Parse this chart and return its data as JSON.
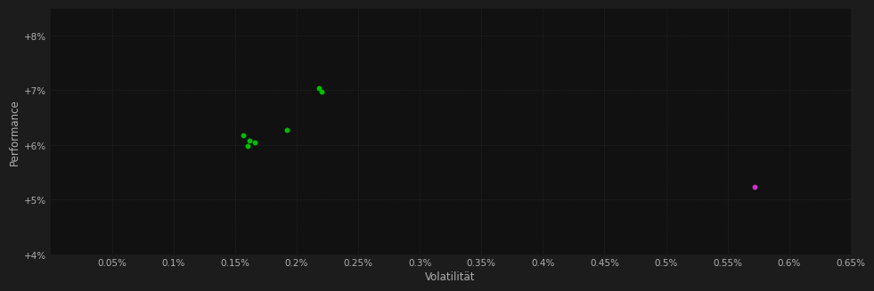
{
  "background_color": "#1c1c1c",
  "plot_bg_color": "#111111",
  "grid_color": "#2e2e2e",
  "text_color": "#b0b0b0",
  "xlabel": "Volatilität",
  "ylabel": "Performance",
  "xlim": [
    0.0,
    0.0065
  ],
  "ylim": [
    0.04,
    0.085
  ],
  "xticks": [
    0.0005,
    0.001,
    0.0015,
    0.002,
    0.0025,
    0.003,
    0.0035,
    0.004,
    0.0045,
    0.005,
    0.0055,
    0.006,
    0.0065
  ],
  "xtick_labels": [
    "0.05%",
    "0.1%",
    "0.15%",
    "0.2%",
    "0.25%",
    "0.3%",
    "0.35%",
    "0.4%",
    "0.45%",
    "0.5%",
    "0.55%",
    "0.6%",
    "0.65%"
  ],
  "yticks": [
    0.04,
    0.05,
    0.06,
    0.07,
    0.08
  ],
  "ytick_labels": [
    "+4%",
    "+5%",
    "+6%",
    "+7%",
    "+8%"
  ],
  "green_points": [
    [
      0.00218,
      0.0703
    ],
    [
      0.0022,
      0.0697
    ],
    [
      0.00157,
      0.0618
    ],
    [
      0.00162,
      0.0608
    ],
    [
      0.00166,
      0.0605
    ],
    [
      0.0016,
      0.0598
    ],
    [
      0.00192,
      0.0628
    ]
  ],
  "magenta_points": [
    [
      0.00572,
      0.0523
    ]
  ],
  "green_color": "#00bb00",
  "magenta_color": "#cc33cc",
  "point_size": 18
}
